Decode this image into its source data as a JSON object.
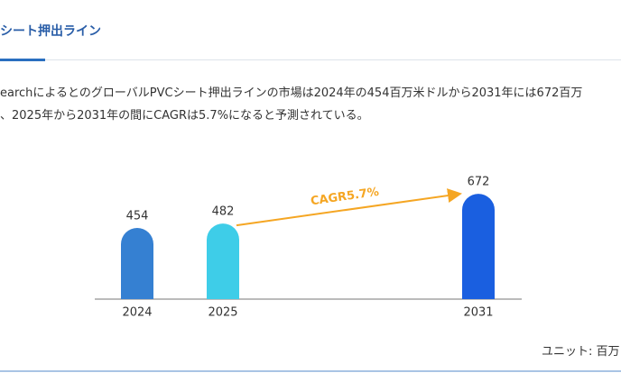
{
  "tab_title": "シート押出ライン",
  "paragraph": [
    "earchによるとのグローバルPVCシート押出ラインの市場は2024年の454百万米ドルから2031年には672百万",
    "、2025年から2031年の間にCAGRは5.7%になると予測されている。"
  ],
  "unit_label": "ユニット: 百万",
  "chart_data": {
    "type": "bar",
    "categories": [
      "2024",
      "2025",
      "2031"
    ],
    "values": [
      454,
      482,
      672
    ],
    "colors": [
      "#3580d2",
      "#3ecde8",
      "#1a5fe0"
    ],
    "annotation": "CAGR5.7%",
    "annotation_color": "#f5a623"
  }
}
